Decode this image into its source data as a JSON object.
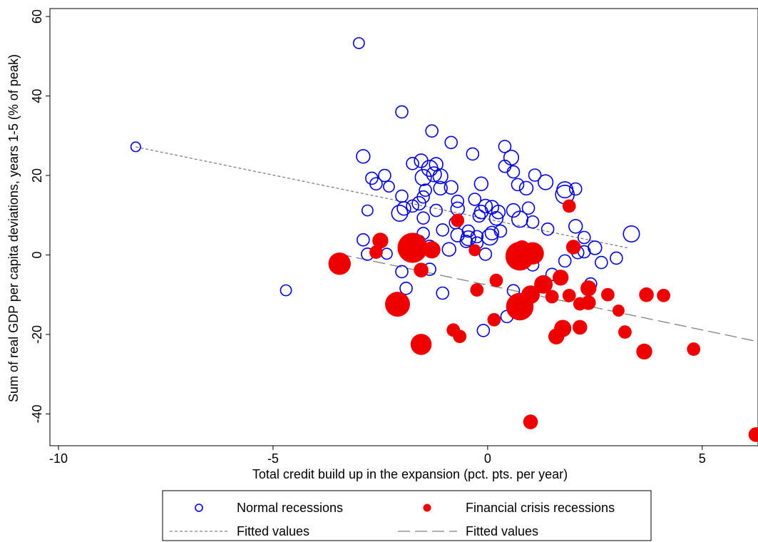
{
  "chart_data": {
    "type": "scatter",
    "title": "",
    "xlabel": "Total credit build up in the expansion (pct. pts. per year)",
    "ylabel": "Sum of real GDP per capita deviations, years 1-5 (% of peak)",
    "xlim": [
      -10.2,
      6.3
    ],
    "ylim": [
      -48,
      62
    ],
    "xticks": [
      -10,
      -5,
      0,
      5
    ],
    "xtick_labels": [
      "-10",
      "-5",
      "0",
      "5"
    ],
    "yticks": [
      -40,
      -20,
      0,
      20,
      40,
      60
    ],
    "ytick_labels": [
      "-40",
      "-20",
      "0",
      "20",
      "40",
      "60"
    ],
    "grid": false,
    "legend_position": "bottom",
    "colors": {
      "normal": "#0000dd",
      "financial": "#ee0000",
      "fit": "#808080"
    },
    "legend": [
      {
        "label": "Normal recessions",
        "symbol": "hollow-circle"
      },
      {
        "label": "Financial crisis recessions",
        "symbol": "filled-circle"
      },
      {
        "label": "Fitted values",
        "symbol": "short-dash"
      },
      {
        "label": "Fitted values",
        "symbol": "long-dash"
      }
    ],
    "series": [
      {
        "name": "Normal recessions",
        "style": "hollow",
        "points": [
          {
            "x": -8.2,
            "y": 27.2,
            "s": 0.3
          },
          {
            "x": -3.0,
            "y": 53.3,
            "s": 0.4
          },
          {
            "x": -4.7,
            "y": -8.9,
            "s": 0.4
          },
          {
            "x": -2.0,
            "y": 36.0,
            "s": 0.5
          },
          {
            "x": -2.9,
            "y": 24.8,
            "s": 0.6
          },
          {
            "x": -2.7,
            "y": 19.3,
            "s": 0.5
          },
          {
            "x": -2.4,
            "y": 20.0,
            "s": 0.5
          },
          {
            "x": -2.6,
            "y": 17.9,
            "s": 0.5
          },
          {
            "x": -2.3,
            "y": 17.2,
            "s": 0.4
          },
          {
            "x": -2.8,
            "y": 11.2,
            "s": 0.4
          },
          {
            "x": -2.9,
            "y": 3.8,
            "s": 0.5
          },
          {
            "x": -2.8,
            "y": 0.2,
            "s": 0.5
          },
          {
            "x": -2.35,
            "y": 0.3,
            "s": 0.4
          },
          {
            "x": -2.0,
            "y": 14.8,
            "s": 0.5
          },
          {
            "x": -1.95,
            "y": 11.7,
            "s": 0.6
          },
          {
            "x": -2.05,
            "y": 10.5,
            "s": 0.8
          },
          {
            "x": -1.75,
            "y": 12.3,
            "s": 0.5
          },
          {
            "x": -1.75,
            "y": 23.0,
            "s": 0.5
          },
          {
            "x": -1.55,
            "y": 23.7,
            "s": 0.6
          },
          {
            "x": -1.3,
            "y": 31.2,
            "s": 0.5
          },
          {
            "x": -1.35,
            "y": 21.8,
            "s": 0.8
          },
          {
            "x": -1.2,
            "y": 22.8,
            "s": 0.6
          },
          {
            "x": -1.25,
            "y": 20.3,
            "s": 0.7
          },
          {
            "x": -1.5,
            "y": 19.5,
            "s": 0.8
          },
          {
            "x": -1.1,
            "y": 19.8,
            "s": 0.7
          },
          {
            "x": -1.45,
            "y": 16.3,
            "s": 0.5
          },
          {
            "x": -1.1,
            "y": 16.8,
            "s": 0.6
          },
          {
            "x": -0.85,
            "y": 17.0,
            "s": 0.6
          },
          {
            "x": -1.5,
            "y": 14.6,
            "s": 0.5
          },
          {
            "x": -1.6,
            "y": 13.0,
            "s": 0.6
          },
          {
            "x": -1.2,
            "y": 11.2,
            "s": 0.5
          },
          {
            "x": -0.85,
            "y": 28.3,
            "s": 0.5
          },
          {
            "x": -0.35,
            "y": 25.4,
            "s": 0.5
          },
          {
            "x": 0.4,
            "y": 27.3,
            "s": 0.5
          },
          {
            "x": 0.55,
            "y": 24.5,
            "s": 0.7
          },
          {
            "x": 0.4,
            "y": 22.3,
            "s": 0.5
          },
          {
            "x": 0.6,
            "y": 20.9,
            "s": 0.5
          },
          {
            "x": 1.1,
            "y": 20.1,
            "s": 0.5
          },
          {
            "x": 1.35,
            "y": 18.3,
            "s": 0.7
          },
          {
            "x": 0.7,
            "y": 17.7,
            "s": 0.5
          },
          {
            "x": 0.9,
            "y": 16.8,
            "s": 0.6
          },
          {
            "x": 1.8,
            "y": 16.4,
            "s": 0.8
          },
          {
            "x": 2.05,
            "y": 16.6,
            "s": 0.5
          },
          {
            "x": 1.8,
            "y": 15.2,
            "s": 1.0
          },
          {
            "x": -0.3,
            "y": 14.0,
            "s": 0.5
          },
          {
            "x": -0.15,
            "y": 17.9,
            "s": 0.6
          },
          {
            "x": -0.7,
            "y": 13.5,
            "s": 0.5
          },
          {
            "x": -0.7,
            "y": 11.6,
            "s": 0.6
          },
          {
            "x": -0.05,
            "y": 12.3,
            "s": 0.6
          },
          {
            "x": -0.15,
            "y": 10.8,
            "s": 0.6
          },
          {
            "x": 0.1,
            "y": 12.0,
            "s": 0.6
          },
          {
            "x": 0.25,
            "y": 10.8,
            "s": 0.6
          },
          {
            "x": 0.6,
            "y": 11.2,
            "s": 0.6
          },
          {
            "x": 0.95,
            "y": 11.8,
            "s": 0.5
          },
          {
            "x": -0.2,
            "y": 9.8,
            "s": 0.5
          },
          {
            "x": 0.2,
            "y": 9.2,
            "s": 0.6
          },
          {
            "x": 0.75,
            "y": 9.0,
            "s": 0.8
          },
          {
            "x": 1.05,
            "y": 8.3,
            "s": 0.5
          },
          {
            "x": -1.5,
            "y": 9.3,
            "s": 0.5
          },
          {
            "x": -0.75,
            "y": 8.1,
            "s": 0.5
          },
          {
            "x": -1.05,
            "y": 6.3,
            "s": 0.5
          },
          {
            "x": -0.45,
            "y": 6.0,
            "s": 0.5
          },
          {
            "x": -0.7,
            "y": 5.0,
            "s": 0.6
          },
          {
            "x": -0.45,
            "y": 4.2,
            "s": 0.7
          },
          {
            "x": -0.25,
            "y": 4.6,
            "s": 0.5
          },
          {
            "x": 0.1,
            "y": 5.5,
            "s": 0.6
          },
          {
            "x": 0.05,
            "y": 4.5,
            "s": 0.8
          },
          {
            "x": 0.3,
            "y": 6.0,
            "s": 0.5
          },
          {
            "x": -0.5,
            "y": 3.4,
            "s": 0.5
          },
          {
            "x": -0.25,
            "y": 3.0,
            "s": 0.5
          },
          {
            "x": -1.5,
            "y": 5.4,
            "s": 0.5
          },
          {
            "x": -1.6,
            "y": 3.4,
            "s": 0.5
          },
          {
            "x": -1.35,
            "y": 2.0,
            "s": 0.6
          },
          {
            "x": -0.9,
            "y": 1.4,
            "s": 0.6
          },
          {
            "x": -0.05,
            "y": 0.2,
            "s": 0.5
          },
          {
            "x": 1.4,
            "y": 6.5,
            "s": 0.5
          },
          {
            "x": 2.05,
            "y": 7.2,
            "s": 0.6
          },
          {
            "x": 2.25,
            "y": 4.4,
            "s": 0.5
          },
          {
            "x": 2.5,
            "y": 1.8,
            "s": 0.6
          },
          {
            "x": 2.25,
            "y": 0.8,
            "s": 0.5
          },
          {
            "x": 3.0,
            "y": -0.8,
            "s": 0.5
          },
          {
            "x": 2.65,
            "y": -1.9,
            "s": 0.5
          },
          {
            "x": 3.35,
            "y": 5.3,
            "s": 0.8
          },
          {
            "x": 1.8,
            "y": -1.5,
            "s": 0.5
          },
          {
            "x": 2.1,
            "y": 0.6,
            "s": 0.5
          },
          {
            "x": 1.5,
            "y": -4.9,
            "s": 0.5
          },
          {
            "x": 2.4,
            "y": -7.3,
            "s": 0.5
          },
          {
            "x": 1.05,
            "y": -2.5,
            "s": 0.5
          },
          {
            "x": -2.0,
            "y": -4.2,
            "s": 0.5
          },
          {
            "x": -1.35,
            "y": -3.6,
            "s": 0.5
          },
          {
            "x": -1.9,
            "y": -8.4,
            "s": 0.5
          },
          {
            "x": -1.05,
            "y": -9.6,
            "s": 0.5
          },
          {
            "x": 0.6,
            "y": -9.0,
            "s": 0.5
          },
          {
            "x": 0.45,
            "y": -15.5,
            "s": 0.5
          },
          {
            "x": -0.1,
            "y": -19.0,
            "s": 0.5
          }
        ]
      },
      {
        "name": "Financial crisis recessions",
        "style": "filled",
        "points": [
          {
            "x": -3.45,
            "y": -2.2,
            "s": 1.3
          },
          {
            "x": -2.6,
            "y": 0.7,
            "s": 0.6
          },
          {
            "x": -2.5,
            "y": 3.6,
            "s": 0.8
          },
          {
            "x": -1.75,
            "y": 1.8,
            "s": 1.9
          },
          {
            "x": -1.3,
            "y": 1.3,
            "s": 0.9
          },
          {
            "x": -1.55,
            "y": -3.8,
            "s": 0.7
          },
          {
            "x": -2.1,
            "y": -12.4,
            "s": 1.5
          },
          {
            "x": -1.55,
            "y": -22.5,
            "s": 1.2
          },
          {
            "x": -0.7,
            "y": 8.7,
            "s": 0.6
          },
          {
            "x": -0.3,
            "y": 1.2,
            "s": 0.5
          },
          {
            "x": -0.8,
            "y": -18.9,
            "s": 0.6
          },
          {
            "x": -0.65,
            "y": -20.5,
            "s": 0.6
          },
          {
            "x": -0.25,
            "y": -8.8,
            "s": 0.6
          },
          {
            "x": 0.2,
            "y": -6.4,
            "s": 0.6
          },
          {
            "x": 0.15,
            "y": -16.3,
            "s": 0.6
          },
          {
            "x": 0.75,
            "y": -0.3,
            "s": 1.8
          },
          {
            "x": 0.8,
            "y": 1.7,
            "s": 0.8
          },
          {
            "x": 1.05,
            "y": 0.4,
            "s": 1.3
          },
          {
            "x": 0.75,
            "y": -13.0,
            "s": 1.7
          },
          {
            "x": 1.0,
            "y": -10.0,
            "s": 1.0
          },
          {
            "x": 1.3,
            "y": -7.4,
            "s": 1.0
          },
          {
            "x": 1.5,
            "y": -10.5,
            "s": 0.6
          },
          {
            "x": 1.7,
            "y": -5.7,
            "s": 0.8
          },
          {
            "x": 1.9,
            "y": -10.2,
            "s": 0.6
          },
          {
            "x": 1.75,
            "y": -18.5,
            "s": 0.9
          },
          {
            "x": 1.6,
            "y": -20.5,
            "s": 0.8
          },
          {
            "x": 2.15,
            "y": -12.3,
            "s": 0.6
          },
          {
            "x": 2.15,
            "y": -18.2,
            "s": 0.7
          },
          {
            "x": 2.35,
            "y": -8.4,
            "s": 0.8
          },
          {
            "x": 2.35,
            "y": -12.0,
            "s": 0.7
          },
          {
            "x": 1.9,
            "y": 12.3,
            "s": 0.6
          },
          {
            "x": 2.0,
            "y": 2.0,
            "s": 0.7
          },
          {
            "x": 2.8,
            "y": -10.0,
            "s": 0.6
          },
          {
            "x": 3.05,
            "y": -14.0,
            "s": 0.5
          },
          {
            "x": 3.2,
            "y": -19.4,
            "s": 0.6
          },
          {
            "x": 3.7,
            "y": -10.0,
            "s": 0.7
          },
          {
            "x": 4.1,
            "y": -10.2,
            "s": 0.6
          },
          {
            "x": 3.65,
            "y": -24.3,
            "s": 0.8
          },
          {
            "x": 4.8,
            "y": -23.7,
            "s": 0.6
          },
          {
            "x": 1.0,
            "y": -42.0,
            "s": 0.7
          },
          {
            "x": 6.25,
            "y": -45.2,
            "s": 0.7
          }
        ]
      }
    ],
    "fits": [
      {
        "name": "Fitted values",
        "series": "Normal recessions",
        "dash": "short-dash",
        "x": [
          -8.2,
          3.3
        ],
        "y": [
          27.2,
          1.7
        ]
      },
      {
        "name": "Fitted values",
        "series": "Financial crisis recessions",
        "dash": "long-dash",
        "x": [
          -3.45,
          6.3
        ],
        "y": [
          0.2,
          -21.8
        ]
      }
    ]
  }
}
